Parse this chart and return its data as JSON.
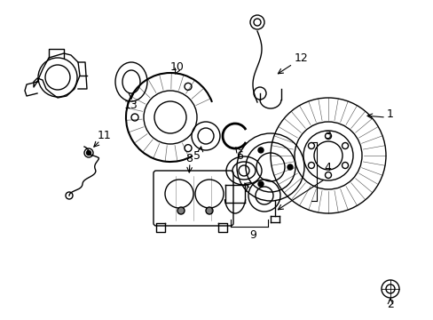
{
  "bg_color": "#ffffff",
  "line_color": "#000000",
  "line_width": 1.0,
  "fig_width": 4.89,
  "fig_height": 3.6,
  "dpi": 100,
  "font_size": 9
}
